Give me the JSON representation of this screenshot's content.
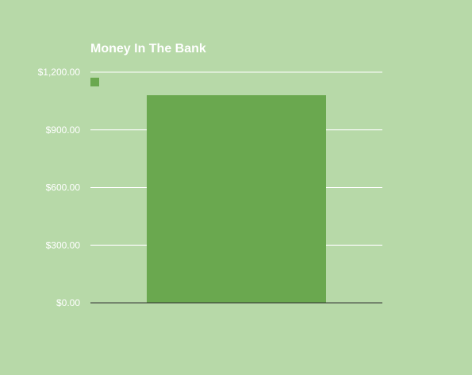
{
  "colors": {
    "background": "#b7d9a8",
    "bar": "#6aa84f",
    "gridline": "#ffffff",
    "baseline": "#333333",
    "text": "#ffffff"
  },
  "chart_data": {
    "type": "bar",
    "title": "Money In The Bank",
    "xlabel": "",
    "ylabel": "",
    "categories": [
      ""
    ],
    "series": [
      {
        "values": [
          1080
        ]
      }
    ],
    "ylim": [
      0,
      1200
    ],
    "y_ticks": [
      0,
      300,
      600,
      900,
      1200
    ],
    "y_tick_labels": [
      "$0.00",
      "$300.00",
      "$600.00",
      "$900.00",
      "$1,200.00"
    ],
    "grid": true,
    "legend_position": "top-left"
  }
}
